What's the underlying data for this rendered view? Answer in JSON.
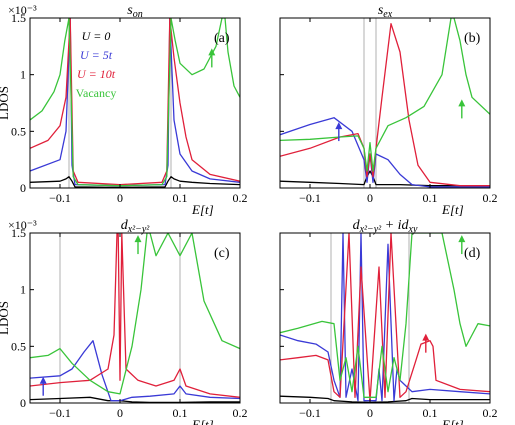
{
  "chart_data": [
    {
      "type": "line",
      "panel": "(a)",
      "title": "s_on",
      "title_display": "s",
      "title_sub": "on",
      "xlabel": "E[t]",
      "ylabel": "LDOS",
      "yscale_label": "×10⁻³",
      "xlim": [
        -0.15,
        0.2
      ],
      "ylim": [
        0,
        1.5
      ],
      "xticks": [
        "-0.1",
        "0",
        "0.1",
        "0.2"
      ],
      "yticks": [
        "0",
        "0.5",
        "1",
        "1.5"
      ],
      "vlines": [
        -0.085,
        0.085
      ],
      "legend": [
        {
          "label": "U = 0",
          "color": "#000000"
        },
        {
          "label": "U = 5t",
          "color": "#3a3ad6"
        },
        {
          "label": "U = 10t",
          "color": "#e0203a"
        },
        {
          "label": "Vacancy",
          "color": "#39c43a"
        }
      ],
      "arrow": {
        "x": 0.153,
        "y": 1.17,
        "color": "#39c43a"
      },
      "series": [
        {
          "color": "#000000",
          "x": [
            -0.15,
            -0.1,
            -0.09,
            -0.085,
            -0.08,
            -0.075,
            0,
            0.075,
            0.08,
            0.085,
            0.09,
            0.1,
            0.12,
            0.15,
            0.2
          ],
          "y": [
            0.05,
            0.06,
            0.08,
            0.1,
            0.06,
            0.01,
            0.005,
            0.01,
            0.06,
            0.1,
            0.08,
            0.06,
            0.05,
            0.04,
            0.03
          ]
        },
        {
          "color": "#3a3ad6",
          "x": [
            -0.15,
            -0.1,
            -0.09,
            -0.083,
            -0.08,
            -0.075,
            0,
            0.075,
            0.08,
            0.083,
            0.09,
            0.1,
            0.12,
            0.15,
            0.2
          ],
          "y": [
            0.15,
            0.25,
            0.5,
            1.5,
            0.2,
            0.03,
            0.02,
            0.03,
            0.2,
            1.5,
            0.6,
            0.3,
            0.15,
            0.08,
            0.05
          ]
        },
        {
          "color": "#e0203a",
          "x": [
            -0.15,
            -0.12,
            -0.1,
            -0.09,
            -0.083,
            -0.078,
            -0.07,
            0,
            0.07,
            0.078,
            0.083,
            0.09,
            0.1,
            0.11,
            0.12,
            0.15,
            0.2
          ],
          "y": [
            0.35,
            0.42,
            0.55,
            0.8,
            1.5,
            0.15,
            0.05,
            0.03,
            0.05,
            0.15,
            1.5,
            1.15,
            0.75,
            0.45,
            0.25,
            0.12,
            0.06
          ]
        },
        {
          "color": "#39c43a",
          "x": [
            -0.15,
            -0.13,
            -0.11,
            -0.1,
            -0.092,
            -0.085,
            -0.078,
            -0.07,
            0,
            0.07,
            0.078,
            0.085,
            0.092,
            0.1,
            0.12,
            0.14,
            0.16,
            0.17,
            0.175,
            0.18,
            0.19,
            0.2
          ],
          "y": [
            0.6,
            0.68,
            0.85,
            1.0,
            1.3,
            1.5,
            0.1,
            0.03,
            0.02,
            0.03,
            0.1,
            1.5,
            1.3,
            1.1,
            1.0,
            1.05,
            1.25,
            1.5,
            1.5,
            1.2,
            0.9,
            0.8
          ]
        }
      ]
    },
    {
      "type": "line",
      "panel": "(b)",
      "title": "s_ex",
      "title_display": "s",
      "title_sub": "ex",
      "xlabel": "E[t]",
      "ylabel": "",
      "xlim": [
        -0.15,
        0.2
      ],
      "ylim": [
        0,
        1.5
      ],
      "xticks": [
        "-0.1",
        "0",
        "0.1",
        "0.2"
      ],
      "yticks": [],
      "vlines": [
        -0.01,
        0.01
      ],
      "arrows": [
        {
          "x": 0.153,
          "y": 0.72,
          "color": "#39c43a"
        },
        {
          "x": -0.052,
          "y": 0.52,
          "color": "#3a3ad6"
        }
      ],
      "series": [
        {
          "color": "#000000",
          "x": [
            -0.15,
            -0.1,
            -0.05,
            -0.01,
            -0.005,
            0,
            0.005,
            0.01,
            0.05,
            0.1,
            0.15,
            0.2
          ],
          "y": [
            0.06,
            0.05,
            0.04,
            0.03,
            0.1,
            0.15,
            0.1,
            0.03,
            0.03,
            0.02,
            0.02,
            0.02
          ]
        },
        {
          "color": "#3a3ad6",
          "x": [
            -0.15,
            -0.1,
            -0.06,
            -0.03,
            -0.01,
            -0.005,
            0,
            0.005,
            0.01,
            0.03,
            0.05,
            0.07,
            0.1,
            0.15,
            0.2
          ],
          "y": [
            0.47,
            0.56,
            0.62,
            0.5,
            0.25,
            0.05,
            0.3,
            0.05,
            0.3,
            0.25,
            0.12,
            0.03,
            0.01,
            0.01,
            0.01
          ]
        },
        {
          "color": "#e0203a",
          "x": [
            -0.15,
            -0.1,
            -0.05,
            -0.02,
            -0.01,
            -0.005,
            0,
            0.005,
            0.01,
            0.02,
            0.035,
            0.05,
            0.065,
            0.08,
            0.1,
            0.15,
            0.2
          ],
          "y": [
            0.28,
            0.35,
            0.45,
            0.48,
            0.35,
            0.1,
            0.3,
            0.1,
            0.35,
            0.8,
            1.45,
            1.2,
            0.6,
            0.2,
            0.05,
            0.02,
            0.02
          ]
        },
        {
          "color": "#39c43a",
          "x": [
            -0.15,
            -0.1,
            -0.05,
            -0.02,
            -0.01,
            -0.005,
            0,
            0.005,
            0.01,
            0.03,
            0.06,
            0.09,
            0.12,
            0.135,
            0.14,
            0.15,
            0.16,
            0.17,
            0.2
          ],
          "y": [
            0.42,
            0.43,
            0.45,
            0.46,
            0.35,
            0.15,
            0.4,
            0.15,
            0.35,
            0.55,
            0.62,
            0.72,
            1.0,
            1.5,
            1.5,
            1.3,
            1.0,
            0.8,
            0.65
          ]
        }
      ]
    },
    {
      "type": "line",
      "panel": "(c)",
      "title": "d_{x^2-y^2}",
      "title_display": "d",
      "title_sub": "x²−y²",
      "xlabel": "E[t]",
      "ylabel": "LDOS",
      "yscale_label": "×10⁻³",
      "xlim": [
        -0.15,
        0.2
      ],
      "ylim": [
        0,
        1.5
      ],
      "xticks": [
        "-0.1",
        "0",
        "0.1",
        "0.2"
      ],
      "yticks": [
        "0",
        "0.5",
        "1",
        "1.5"
      ],
      "vlines": [
        -0.1,
        0.1
      ],
      "arrows": [
        {
          "x": 0.03,
          "y": 1.42,
          "color": "#39c43a"
        },
        {
          "x": -0.128,
          "y": 0.17,
          "color": "#3a3ad6"
        }
      ],
      "series": [
        {
          "color": "#000000",
          "x": [
            -0.15,
            -0.1,
            -0.05,
            -0.02,
            0,
            0.02,
            0.05,
            0.1,
            0.15,
            0.2
          ],
          "y": [
            0.03,
            0.04,
            0.05,
            0.02,
            0.02,
            0.01,
            0.005,
            0.005,
            0.01,
            0.01
          ]
        },
        {
          "color": "#3a3ad6",
          "x": [
            -0.15,
            -0.1,
            -0.08,
            -0.06,
            -0.045,
            -0.03,
            -0.015,
            0,
            0.02,
            0.05,
            0.09,
            0.1,
            0.11,
            0.15,
            0.2
          ],
          "y": [
            0.22,
            0.24,
            0.3,
            0.45,
            0.55,
            0.25,
            0.02,
            0.02,
            0.05,
            0.06,
            0.08,
            0.15,
            0.08,
            0.05,
            0.04
          ]
        },
        {
          "color": "#e0203a",
          "x": [
            -0.15,
            -0.1,
            -0.05,
            -0.02,
            -0.01,
            -0.005,
            -0.003,
            0,
            0.003,
            0.01,
            0.03,
            0.06,
            0.09,
            0.1,
            0.11,
            0.15,
            0.2
          ],
          "y": [
            0.15,
            0.18,
            0.2,
            0.3,
            0.6,
            1.5,
            1.5,
            0.2,
            1.5,
            0.3,
            0.2,
            0.15,
            0.2,
            0.3,
            0.15,
            0.08,
            0.05
          ]
        },
        {
          "color": "#39c43a",
          "x": [
            -0.15,
            -0.12,
            -0.1,
            -0.08,
            -0.05,
            -0.02,
            0,
            0.02,
            0.035,
            0.045,
            0.05,
            0.06,
            0.08,
            0.1,
            0.12,
            0.14,
            0.17,
            0.2
          ],
          "y": [
            0.4,
            0.42,
            0.48,
            0.35,
            0.2,
            0.1,
            0.08,
            0.5,
            1.0,
            1.5,
            1.5,
            1.3,
            1.5,
            1.3,
            1.5,
            0.9,
            0.55,
            0.48
          ]
        }
      ]
    },
    {
      "type": "line",
      "panel": "(d)",
      "title": "d_{x^2-y^2} + id_{xy}",
      "title_display": "d",
      "title_sub": "x²−y²",
      "title_mid": " + id",
      "title_sub2": "xy",
      "xlabel": "E[t]",
      "ylabel": "",
      "xlim": [
        -0.15,
        0.2
      ],
      "ylim": [
        0,
        1.5
      ],
      "xticks": [
        "-0.1",
        "0",
        "0.1",
        "0.2"
      ],
      "yticks": [],
      "vlines": [
        -0.065,
        0.065
      ],
      "arrows": [
        {
          "x": 0.153,
          "y": 1.42,
          "color": "#39c43a"
        },
        {
          "x": 0.093,
          "y": 0.55,
          "color": "#e0203a"
        }
      ],
      "series": [
        {
          "color": "#000000",
          "x": [
            -0.15,
            -0.1,
            -0.07,
            -0.06,
            -0.03,
            0,
            0.03,
            0.06,
            0.07,
            0.1,
            0.15,
            0.2
          ],
          "y": [
            0.06,
            0.05,
            0.04,
            0.02,
            0.01,
            0.005,
            0.01,
            0.02,
            0.04,
            0.03,
            0.03,
            0.03
          ]
        },
        {
          "color": "#3a3ad6",
          "x": [
            -0.15,
            -0.12,
            -0.09,
            -0.07,
            -0.06,
            -0.05,
            -0.045,
            -0.04,
            -0.03,
            -0.02,
            -0.015,
            -0.01,
            0,
            0.01,
            0.015,
            0.02,
            0.03,
            0.04,
            0.045,
            0.05,
            0.06,
            0.07,
            0.1,
            0.15,
            0.2
          ],
          "y": [
            0.6,
            0.55,
            0.52,
            0.45,
            0.2,
            0.05,
            1.5,
            0.05,
            0.3,
            0.02,
            1.5,
            0.02,
            0.02,
            0.02,
            0.3,
            0.02,
            1.4,
            0.02,
            0.3,
            0.2,
            0.15,
            0.1,
            0.12,
            0.1,
            0.08
          ]
        },
        {
          "color": "#e0203a",
          "x": [
            -0.15,
            -0.12,
            -0.09,
            -0.07,
            -0.06,
            -0.05,
            -0.035,
            -0.025,
            -0.015,
            0,
            0.015,
            0.025,
            0.035,
            0.05,
            0.06,
            0.075,
            0.085,
            0.1,
            0.105,
            0.11,
            0.15,
            0.2
          ],
          "y": [
            0.38,
            0.4,
            0.42,
            0.38,
            0.1,
            0.05,
            1.5,
            0.05,
            1.2,
            0.02,
            1.2,
            0.05,
            1.5,
            0.05,
            0.1,
            0.35,
            0.52,
            0.55,
            0.5,
            0.2,
            0.12,
            0.1
          ]
        },
        {
          "color": "#39c43a",
          "x": [
            -0.15,
            -0.12,
            -0.08,
            -0.06,
            -0.05,
            -0.04,
            -0.03,
            -0.02,
            -0.01,
            0,
            0.01,
            0.02,
            0.03,
            0.04,
            0.05,
            0.06,
            0.07,
            0.08,
            0.1,
            0.12,
            0.14,
            0.15,
            0.16,
            0.17,
            0.18,
            0.2
          ],
          "y": [
            0.62,
            0.66,
            0.72,
            0.7,
            0.2,
            0.4,
            0.1,
            0.5,
            0.05,
            0.05,
            0.05,
            0.5,
            0.1,
            0.4,
            0.2,
            0.7,
            1.5,
            1.5,
            1.5,
            1.5,
            1.0,
            0.7,
            0.5,
            0.6,
            0.7,
            0.68
          ]
        }
      ]
    }
  ]
}
